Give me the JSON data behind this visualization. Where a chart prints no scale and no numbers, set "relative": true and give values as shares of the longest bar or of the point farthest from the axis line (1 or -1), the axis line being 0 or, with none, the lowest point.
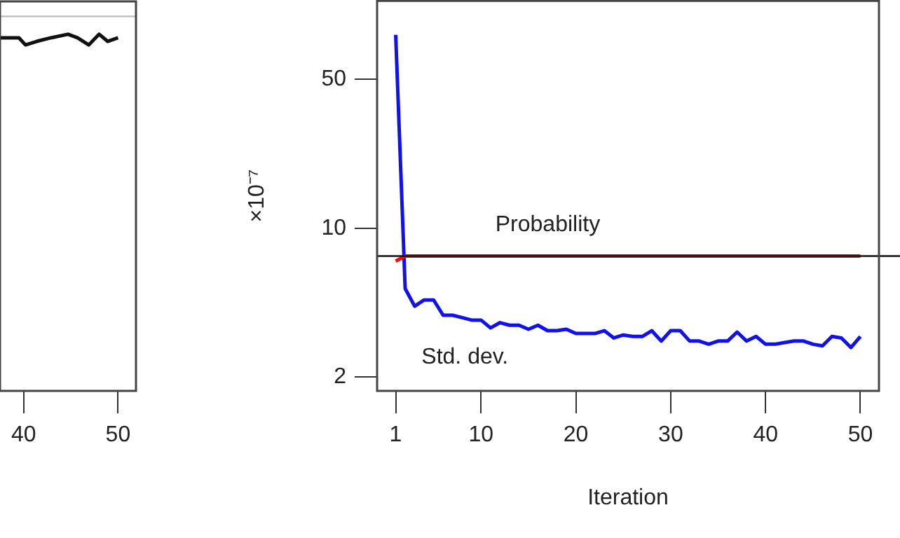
{
  "chart_data": [
    {
      "type": "line",
      "relative": true,
      "xlim": [
        37.5,
        51.9
      ],
      "xticks": [
        40,
        50
      ],
      "tick_labels": "x",
      "grid": false,
      "legend": false,
      "series": [
        {
          "color": "#111111",
          "x": [
            37.5,
            39.5,
            40.2,
            41.4,
            42.9,
            44.7,
            45.7,
            46.9,
            48.0,
            48.9,
            50.0
          ],
          "values": [
            0.99,
            0.99,
            0.97,
            0.98,
            0.99,
            1.0,
            0.99,
            0.97,
            1.0,
            0.98,
            0.99
          ]
        }
      ],
      "ref_lines": [
        {
          "axis": "y",
          "value": 1.05,
          "color": "#bbbbbb"
        }
      ]
    },
    {
      "type": "line",
      "xlabel": "Iteration",
      "ylabel": "×10⁻⁷",
      "log": "y",
      "xlim": [
        -0.96,
        51.96
      ],
      "ylim": [
        1.72,
        117
      ],
      "xticks": [
        1,
        10,
        20,
        30,
        40,
        50
      ],
      "yticks": [
        2,
        10,
        50
      ],
      "grid": false,
      "legend": false,
      "series": [
        {
          "name": "Probability",
          "color": "#ee1111",
          "x": [
            1,
            2,
            5,
            10,
            15,
            20,
            25,
            30,
            35,
            40,
            45,
            50
          ],
          "values": [
            7.0,
            7.4,
            7.4,
            7.4,
            7.4,
            7.4,
            7.4,
            7.4,
            7.4,
            7.4,
            7.4,
            7.4
          ]
        },
        {
          "name": "Std. dev.",
          "color": "#1111ee",
          "x": [
            1,
            2,
            3,
            4,
            5,
            6,
            7,
            8,
            9,
            10,
            11,
            12,
            13,
            14,
            15,
            16,
            17,
            18,
            19,
            20,
            21,
            22,
            23,
            24,
            25,
            26,
            27,
            28,
            29,
            30,
            31,
            32,
            33,
            34,
            35,
            36,
            37,
            38,
            39,
            40,
            41,
            42,
            43,
            44,
            45,
            46,
            47,
            48,
            49,
            50
          ],
          "values": [
            81,
            5.2,
            4.3,
            4.6,
            4.6,
            3.9,
            3.9,
            3.8,
            3.7,
            3.7,
            3.4,
            3.6,
            3.5,
            3.5,
            3.35,
            3.5,
            3.3,
            3.3,
            3.35,
            3.2,
            3.2,
            3.2,
            3.3,
            3.05,
            3.15,
            3.1,
            3.1,
            3.3,
            2.95,
            3.3,
            3.3,
            2.95,
            2.95,
            2.85,
            2.95,
            2.95,
            3.25,
            2.95,
            3.1,
            2.85,
            2.85,
            2.9,
            2.95,
            2.95,
            2.85,
            2.8,
            3.1,
            3.05,
            2.75,
            3.1
          ]
        }
      ],
      "ref_lines": [
        {
          "axis": "y",
          "value": 7.4,
          "color": "#111111"
        }
      ]
    }
  ]
}
